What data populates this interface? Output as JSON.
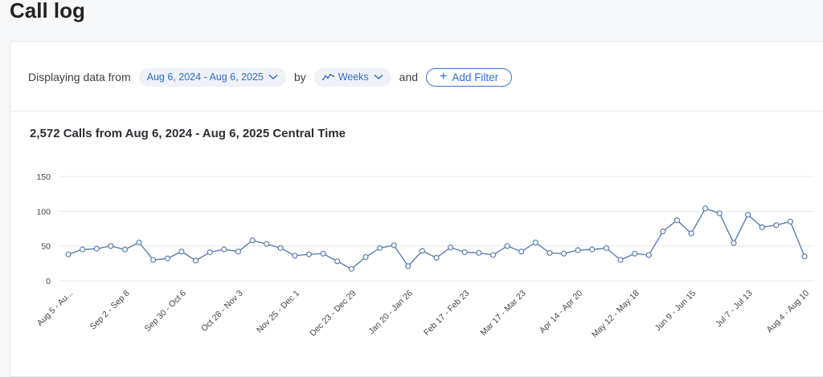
{
  "page": {
    "title": "Call log"
  },
  "filters": {
    "prefix": "Displaying data from",
    "date_range": "Aug 6, 2024 - Aug 6, 2025",
    "by_label": "by",
    "granularity": "Weeks",
    "and_label": "and",
    "add_filter": "Add Filter"
  },
  "colors": {
    "accent": "#3b77c6",
    "line": "#5b7fae",
    "grid": "#e6e8eb"
  },
  "chart_data": {
    "type": "line",
    "title": "2,572 Calls from Aug 6, 2024 - Aug 6, 2025 Central Time",
    "ylim": [
      0,
      150
    ],
    "yticks": [
      0,
      50,
      100,
      150
    ],
    "grid": true,
    "x_tick_labels": [
      {
        "index": 0,
        "label": "Aug 5 - Au..."
      },
      {
        "index": 4,
        "label": "Sep 2 - Sep 8"
      },
      {
        "index": 8,
        "label": "Sep 30 - Oct 6"
      },
      {
        "index": 12,
        "label": "Oct 28 - Nov 3"
      },
      {
        "index": 16,
        "label": "Nov 25 - Dec 1"
      },
      {
        "index": 20,
        "label": "Dec 23 - Dec 29"
      },
      {
        "index": 24,
        "label": "Jan 20 - Jan 26"
      },
      {
        "index": 28,
        "label": "Feb 17 - Feb 23"
      },
      {
        "index": 32,
        "label": "Mar 17 - Mar 23"
      },
      {
        "index": 36,
        "label": "Apr 14 - Apr 20"
      },
      {
        "index": 40,
        "label": "May 12 - May 18"
      },
      {
        "index": 44,
        "label": "Jun 9 - Jun 15"
      },
      {
        "index": 48,
        "label": "Jul 7 - Jul 13"
      },
      {
        "index": 52,
        "label": "Aug 4 - Aug 10"
      }
    ],
    "series": [
      {
        "values": [
          38,
          45,
          46,
          50,
          45,
          55,
          30,
          32,
          42,
          29,
          41,
          45,
          42,
          58,
          53,
          47,
          36,
          38,
          39,
          28,
          17,
          34,
          47,
          51,
          21,
          43,
          33,
          48,
          41,
          40,
          37,
          50,
          42,
          55,
          40,
          39,
          44,
          45,
          47,
          30,
          39,
          37,
          71,
          87,
          68,
          104,
          97,
          54,
          95,
          77,
          80,
          85,
          35
        ]
      }
    ]
  }
}
